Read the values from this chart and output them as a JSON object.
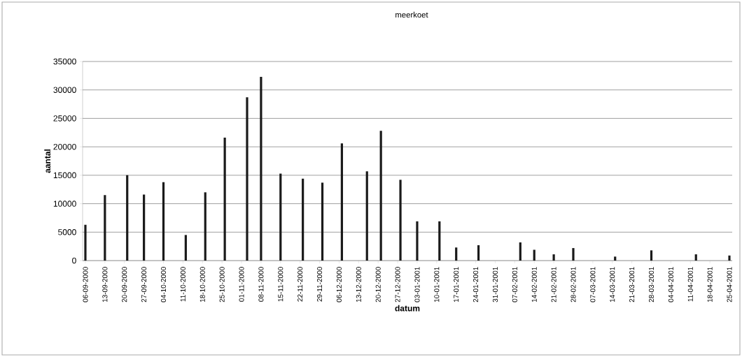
{
  "chart_data": {
    "type": "bar",
    "title": "meerkoet",
    "xlabel": "datum",
    "ylabel": "aantal",
    "color": "#1a1a1a",
    "x": [
      "2000-09-06",
      "2000-09-13",
      "2000-09-21",
      "2000-09-27",
      "2000-10-04",
      "2000-10-12",
      "2000-10-19",
      "2000-10-26",
      "2000-11-03",
      "2000-11-08",
      "2000-11-15",
      "2000-11-23",
      "2000-11-30",
      "2000-12-07",
      "2000-12-16",
      "2000-12-21",
      "2000-12-28",
      "2001-01-03",
      "2001-01-11",
      "2001-01-17",
      "2001-01-25",
      "2001-02-09",
      "2001-02-14",
      "2001-02-21",
      "2001-02-28",
      "2001-03-15",
      "2001-03-28",
      "2001-04-13",
      "2001-04-25"
    ],
    "values": [
      6300,
      11500,
      15000,
      11600,
      13800,
      4500,
      12000,
      21600,
      28700,
      32300,
      15300,
      14400,
      13700,
      20600,
      15700,
      22800,
      14200,
      6900,
      6900,
      2300,
      2700,
      3200,
      1900,
      1100,
      2200,
      700,
      1800,
      1100,
      900
    ],
    "xlim": [
      "2000-09-05",
      "2001-04-26"
    ],
    "xticks": [
      {
        "value": "2000-09-06",
        "label": "06-09-2000"
      },
      {
        "value": "2000-09-13",
        "label": "13-09-2000"
      },
      {
        "value": "2000-09-20",
        "label": "20-09-2000"
      },
      {
        "value": "2000-09-27",
        "label": "27-09-2000"
      },
      {
        "value": "2000-10-04",
        "label": "04-10-2000"
      },
      {
        "value": "2000-10-11",
        "label": "11-10-2000"
      },
      {
        "value": "2000-10-18",
        "label": "18-10-2000"
      },
      {
        "value": "2000-10-25",
        "label": "25-10-2000"
      },
      {
        "value": "2000-11-01",
        "label": "01-11-2000"
      },
      {
        "value": "2000-11-08",
        "label": "08-11-2000"
      },
      {
        "value": "2000-11-15",
        "label": "15-11-2000"
      },
      {
        "value": "2000-11-22",
        "label": "22-11-2000"
      },
      {
        "value": "2000-11-29",
        "label": "29-11-2000"
      },
      {
        "value": "2000-12-06",
        "label": "06-12-2000"
      },
      {
        "value": "2000-12-13",
        "label": "13-12-2000"
      },
      {
        "value": "2000-12-20",
        "label": "20-12-2000"
      },
      {
        "value": "2000-12-27",
        "label": "27-12-2000"
      },
      {
        "value": "2001-01-03",
        "label": "03-01-2001"
      },
      {
        "value": "2001-01-10",
        "label": "10-01-2001"
      },
      {
        "value": "2001-01-17",
        "label": "17-01-2001"
      },
      {
        "value": "2001-01-24",
        "label": "24-01-2001"
      },
      {
        "value": "2001-01-31",
        "label": "31-01-2001"
      },
      {
        "value": "2001-02-07",
        "label": "07-02-2001"
      },
      {
        "value": "2001-02-14",
        "label": "14-02-2001"
      },
      {
        "value": "2001-02-21",
        "label": "21-02-2001"
      },
      {
        "value": "2001-02-28",
        "label": "28-02-2001"
      },
      {
        "value": "2001-03-07",
        "label": "07-03-2001"
      },
      {
        "value": "2001-03-14",
        "label": "14-03-2001"
      },
      {
        "value": "2001-03-21",
        "label": "21-03-2001"
      },
      {
        "value": "2001-03-28",
        "label": "28-03-2001"
      },
      {
        "value": "2001-04-04",
        "label": "04-04-2001"
      },
      {
        "value": "2001-04-11",
        "label": "11-04-2001"
      },
      {
        "value": "2001-04-18",
        "label": "18-04-2001"
      },
      {
        "value": "2001-04-25",
        "label": "25-04-2001"
      }
    ],
    "ylim": [
      0,
      35000
    ],
    "yticks": [
      0,
      5000,
      10000,
      15000,
      20000,
      25000,
      30000,
      35000
    ],
    "grid": "y"
  }
}
